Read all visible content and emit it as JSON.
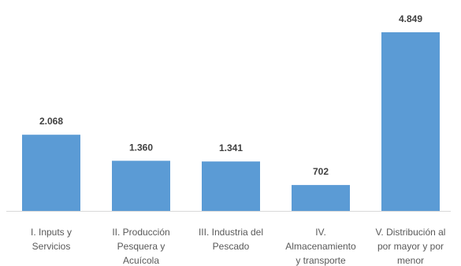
{
  "chart_data": {
    "type": "bar",
    "categories": [
      [
        "I. Inputs y",
        "Servicios"
      ],
      [
        "II. Producción",
        "Pesquera y",
        "Acuícola"
      ],
      [
        "III. Industria del",
        "Pescado"
      ],
      [
        "IV.",
        "Almacenamiento",
        "y transporte"
      ],
      [
        "V. Distribución al",
        "por mayor y por",
        "menor"
      ]
    ],
    "values": [
      2068,
      1360,
      1341,
      702,
      4849
    ],
    "data_labels": [
      "2.068",
      "1.360",
      "1.341",
      "702",
      "4.849"
    ],
    "title": "",
    "xlabel": "",
    "ylabel": "",
    "ylim": [
      0,
      4849
    ],
    "grid": false,
    "legend": "none",
    "colors": {
      "bar": "#5b9bd5",
      "axis": "#d9d9d9",
      "label": "#404040",
      "category": "#595959"
    }
  }
}
